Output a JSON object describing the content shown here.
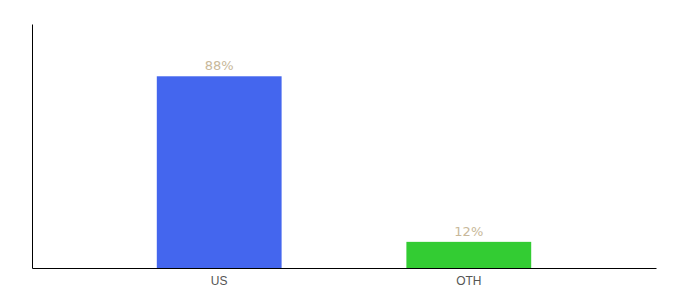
{
  "chart_data": {
    "type": "bar",
    "categories": [
      "US",
      "OTH"
    ],
    "values": [
      88,
      12
    ],
    "value_labels": [
      "88%",
      "12%"
    ],
    "colors": [
      "#4466ee",
      "#33cc33"
    ],
    "ylim": [
      0,
      112
    ],
    "data_labels": true,
    "tick_labels": "x"
  }
}
